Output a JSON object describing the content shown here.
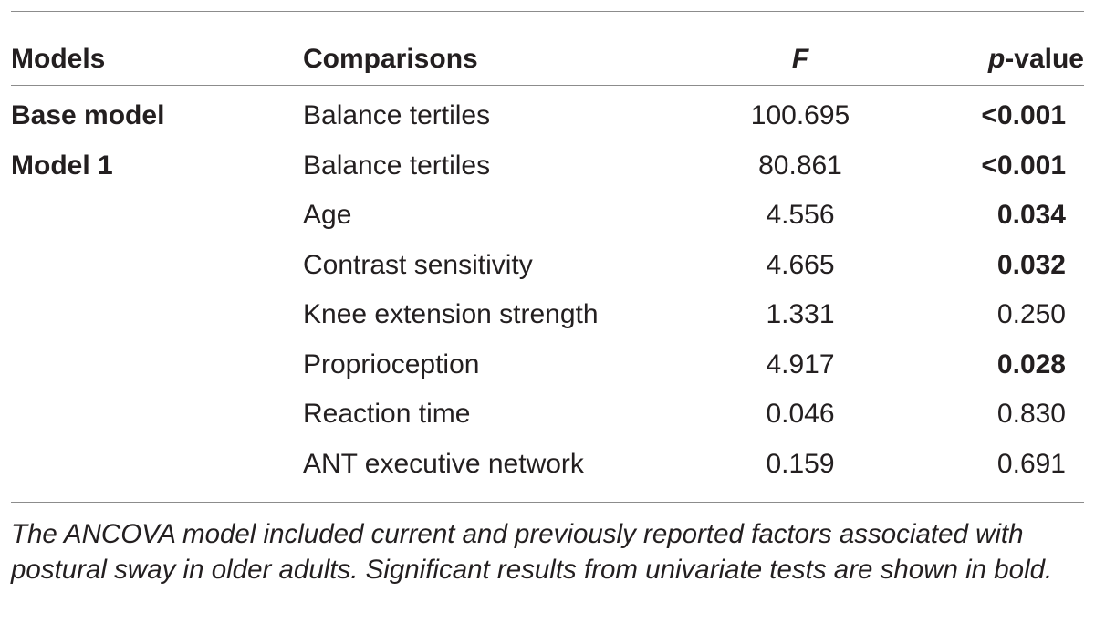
{
  "table": {
    "headers": {
      "models": "Models",
      "comparisons": "Comparisons",
      "f": "F",
      "p_italic": "p",
      "p_rest": "-value"
    },
    "rows": [
      {
        "model": "Base model",
        "comparison": "Balance tertiles",
        "f": "100.695",
        "p": "<0.001",
        "significant": true
      },
      {
        "model": "Model 1",
        "comparison": "Balance tertiles",
        "f": "80.861",
        "p": "<0.001",
        "significant": true
      },
      {
        "model": "",
        "comparison": "Age",
        "f": "4.556",
        "p": "0.034",
        "significant": true
      },
      {
        "model": "",
        "comparison": "Contrast sensitivity",
        "f": "4.665",
        "p": "0.032",
        "significant": true
      },
      {
        "model": "",
        "comparison": "Knee extension strength",
        "f": "1.331",
        "p": "0.250",
        "significant": false
      },
      {
        "model": "",
        "comparison": "Proprioception",
        "f": "4.917",
        "p": "0.028",
        "significant": true
      },
      {
        "model": "",
        "comparison": "Reaction time",
        "f": "0.046",
        "p": "0.830",
        "significant": false
      },
      {
        "model": "",
        "comparison": "ANT executive network",
        "f": "0.159",
        "p": "0.691",
        "significant": false
      }
    ],
    "footnote": "The ANCOVA model included current and previously reported factors associated with postural sway in older adults. Significant results from univariate tests are shown in bold."
  },
  "colors": {
    "text": "#231f20",
    "rule": "#8c8c8c"
  }
}
